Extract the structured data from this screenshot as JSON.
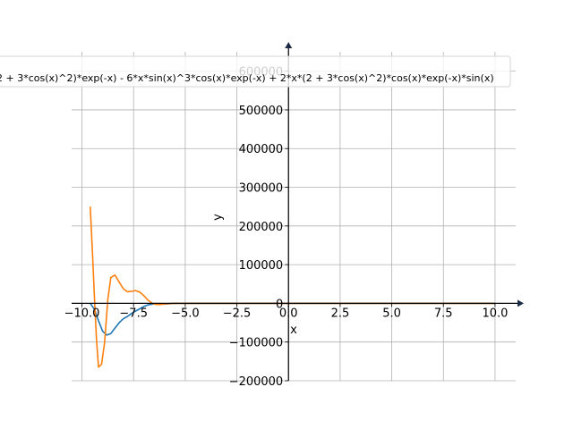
{
  "chart_data": {
    "type": "line",
    "title": "",
    "xlabel": "x",
    "ylabel": "y",
    "xlim": [
      -10.5,
      11
    ],
    "ylim": [
      -200000,
      650000
    ],
    "grid": true,
    "legend_position": "top",
    "legend_text": "2 + 3*cos(x)^2)*exp(-x) - 6*x*sin(x)^3*cos(x)*exp(-x) + 2*x*(2 + 3*cos(x)^2)*cos(x)*exp(-x)*sin(x)",
    "x_ticks": [
      {
        "value": -10,
        "label": "−10.0"
      },
      {
        "value": -7.5,
        "label": "−7.5"
      },
      {
        "value": -5,
        "label": "−5.0"
      },
      {
        "value": -2.5,
        "label": "−2.5"
      },
      {
        "value": 0,
        "label": "0.0"
      },
      {
        "value": 2.5,
        "label": "2.5"
      },
      {
        "value": 5,
        "label": "5.0"
      },
      {
        "value": 7.5,
        "label": "7.5"
      },
      {
        "value": 10,
        "label": "10.0"
      }
    ],
    "y_ticks": [
      {
        "value": -200000,
        "label": "−200000"
      },
      {
        "value": -100000,
        "label": "−100000"
      },
      {
        "value": 0,
        "label": "0"
      },
      {
        "value": 100000,
        "label": "100000"
      },
      {
        "value": 200000,
        "label": "200000"
      },
      {
        "value": 300000,
        "label": "300000"
      },
      {
        "value": 400000,
        "label": "400000"
      },
      {
        "value": 500000,
        "label": "500000"
      },
      {
        "value": 600000,
        "label": "600000"
      }
    ],
    "series": [
      {
        "color": "#1f77b4",
        "points": [
          [
            -9.6,
            0
          ],
          [
            -9.4,
            -15000
          ],
          [
            -9.2,
            -45000
          ],
          [
            -9.0,
            -72000
          ],
          [
            -8.8,
            -82000
          ],
          [
            -8.6,
            -78000
          ],
          [
            -8.4,
            -64000
          ],
          [
            -8.2,
            -50000
          ],
          [
            -8.0,
            -40000
          ],
          [
            -7.8,
            -34000
          ],
          [
            -7.6,
            -26000
          ],
          [
            -7.4,
            -20000
          ],
          [
            -7.2,
            -14000
          ],
          [
            -7.0,
            -8000
          ],
          [
            -6.8,
            -4000
          ],
          [
            -6.6,
            -2000
          ],
          [
            -6.4,
            -1000
          ],
          [
            -6.0,
            -2000
          ],
          [
            -5.5,
            0
          ],
          [
            -5.0,
            0
          ],
          [
            -4.0,
            0
          ],
          [
            -2.0,
            0
          ],
          [
            0,
            0
          ],
          [
            5,
            0
          ],
          [
            10,
            0
          ]
        ]
      },
      {
        "color": "#ff7f0e",
        "points": [
          [
            -9.6,
            250000
          ],
          [
            -9.5,
            140000
          ],
          [
            -9.4,
            20000
          ],
          [
            -9.3,
            -90000
          ],
          [
            -9.2,
            -165000
          ],
          [
            -9.05,
            -157000
          ],
          [
            -8.9,
            -100000
          ],
          [
            -8.75,
            10000
          ],
          [
            -8.6,
            67000
          ],
          [
            -8.4,
            73000
          ],
          [
            -8.2,
            55000
          ],
          [
            -8.0,
            38000
          ],
          [
            -7.8,
            30000
          ],
          [
            -7.6,
            31000
          ],
          [
            -7.4,
            33000
          ],
          [
            -7.2,
            29000
          ],
          [
            -7.0,
            20000
          ],
          [
            -6.8,
            8000
          ],
          [
            -6.6,
            0
          ],
          [
            -6.4,
            -3000
          ],
          [
            -6.2,
            -3000
          ],
          [
            -5.9,
            -1000
          ],
          [
            -5.5,
            0
          ],
          [
            -5.0,
            0
          ],
          [
            -4.0,
            0
          ],
          [
            -2.0,
            0
          ],
          [
            0,
            0
          ],
          [
            5,
            0
          ],
          [
            10,
            0
          ]
        ]
      }
    ]
  }
}
